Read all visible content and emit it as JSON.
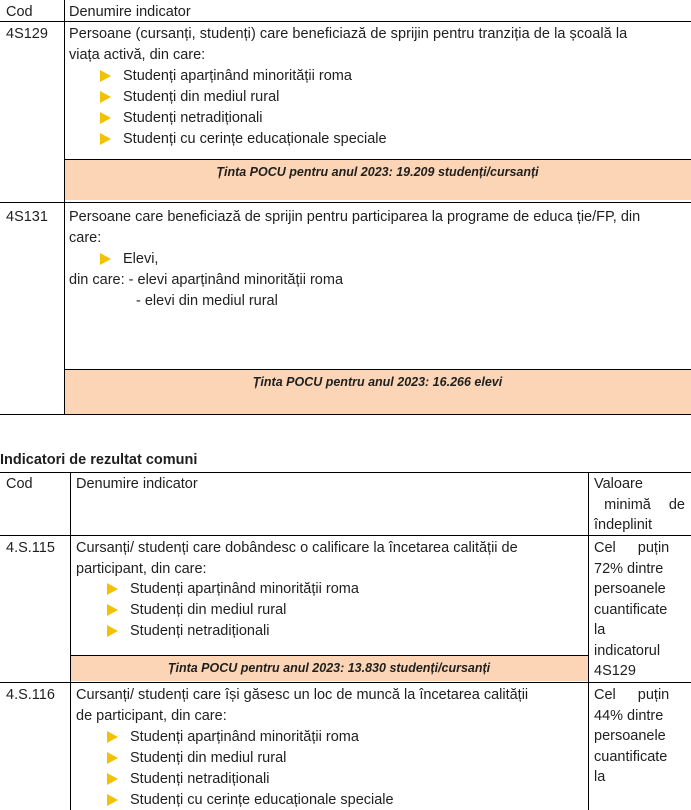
{
  "table1": {
    "header": {
      "cod": "Cod",
      "denumire": "Denumire indicator"
    },
    "row1": {
      "cod": "4S129",
      "line1": "Persoane (cursanți, studenți) care beneficiază de sprijin pentru tranziția de la școală la",
      "line2": "viața activă, din care:",
      "bullets": [
        "Studenți aparținând minorității roma",
        "Studenți din mediul rural",
        "Studenți netradiționali",
        "Studenți cu cerințe educaționale speciale"
      ],
      "tinta": "Ținta POCU pentru anul 2023: 19.209 studenți/cursanți"
    },
    "row2": {
      "cod": "4S131",
      "line1": "Persoane care beneficiază de sprijin pentru participarea la programe de educa ție/FP, din",
      "line2": "care:",
      "bullet": "Elevi,",
      "sub1": "din care: - elevi aparținând minorității roma",
      "sub2": "- elevi din mediul rural",
      "tinta": "Ținta POCU pentru anul 2023: 16.266 elevi"
    }
  },
  "section_title": "Indicatori de rezultat comuni",
  "table2": {
    "header": {
      "cod": "Cod",
      "denumire": "Denumire indicator",
      "valoare": [
        "Valoare",
        "minimă de",
        "îndeplinit"
      ]
    },
    "row1": {
      "cod": "4.S.115",
      "line1": "Cursanți/ studenți care dobândesc o calificare la încetarea calității de",
      "line2": "participant, din care:",
      "bullets": [
        "Studenți aparținând minorității roma",
        "Studenți din mediul rural",
        "Studenți netradiționali"
      ],
      "tinta": "Ținta POCU pentru anul 2023: 13.830 studenți/cursanți",
      "valoare": [
        "Cel puțin",
        "72% dintre",
        "persoanele",
        "cuantificate",
        "la",
        "indicatorul",
        "4S129"
      ]
    },
    "row2": {
      "cod": "4.S.116",
      "line1": "Cursanți/ studenți care își găsesc un loc de muncă la încetarea calității",
      "line2": "de participant, din care:",
      "bullets": [
        "Studenți aparținând minorității roma",
        "Studenți din mediul rural",
        "Studenți netradiționali",
        "Studenți cu cerințe educaționale speciale"
      ],
      "valoare": [
        "Cel puțin",
        "44% dintre",
        "persoanele",
        "cuantificate",
        "la"
      ]
    }
  }
}
